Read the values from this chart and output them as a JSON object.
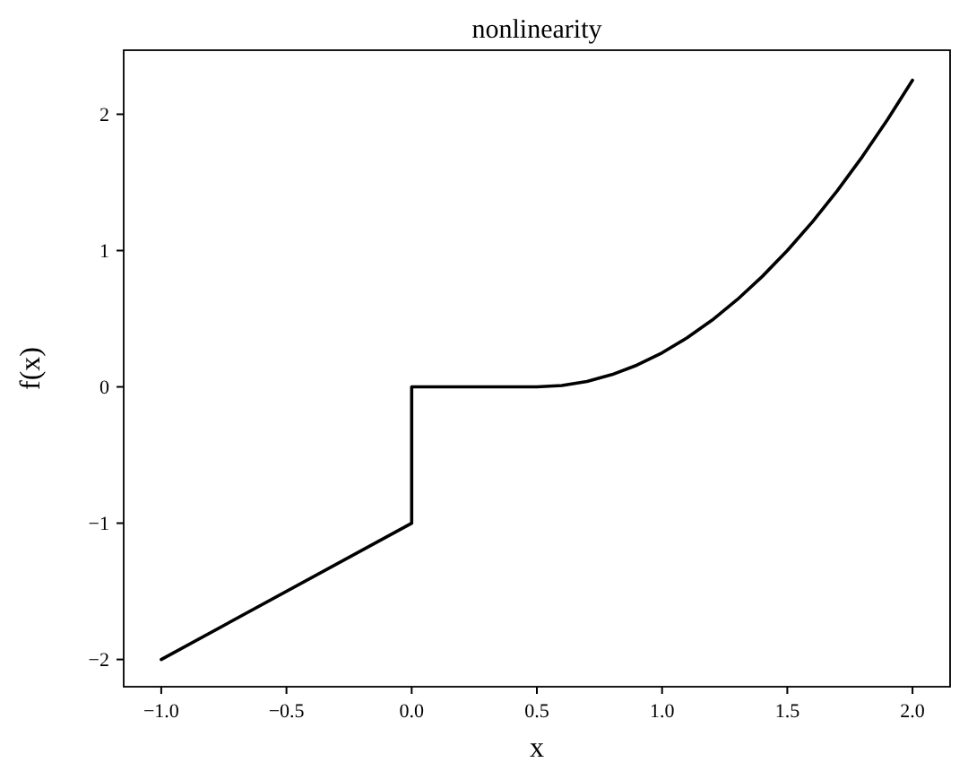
{
  "chart_data": {
    "type": "line",
    "title": "nonlinearity",
    "xlabel": "x",
    "ylabel": "f(x)",
    "x": [
      -1,
      0,
      0,
      0.5,
      0.6,
      0.7,
      0.8,
      0.9,
      1.0,
      1.1,
      1.2,
      1.3,
      1.4,
      1.5,
      1.6,
      1.7,
      1.8,
      1.9,
      2.0
    ],
    "series": [
      {
        "color": "#000000",
        "values": [
          -2,
          -1,
          0,
          0,
          0.01,
          0.04,
          0.09,
          0.16,
          0.25,
          0.36,
          0.49,
          0.64,
          0.81,
          1.0,
          1.21,
          1.44,
          1.69,
          1.96,
          2.25
        ]
      }
    ],
    "xlim": [
      -1.15,
      2.15
    ],
    "ylim": [
      -2.2,
      2.47
    ],
    "xticks": [
      {
        "value": -1,
        "label": "−1.0"
      },
      {
        "value": -0.5,
        "label": "−0.5"
      },
      {
        "value": 0,
        "label": "0.0"
      },
      {
        "value": 0.5,
        "label": "0.5"
      },
      {
        "value": 1,
        "label": "1.0"
      },
      {
        "value": 1.5,
        "label": "1.5"
      },
      {
        "value": 2,
        "label": "2.0"
      }
    ],
    "yticks": [
      {
        "value": -2,
        "label": "−2"
      },
      {
        "value": -1,
        "label": "−1"
      },
      0,
      1,
      2
    ],
    "grid": false,
    "marker": "none",
    "line_style": "solid"
  }
}
